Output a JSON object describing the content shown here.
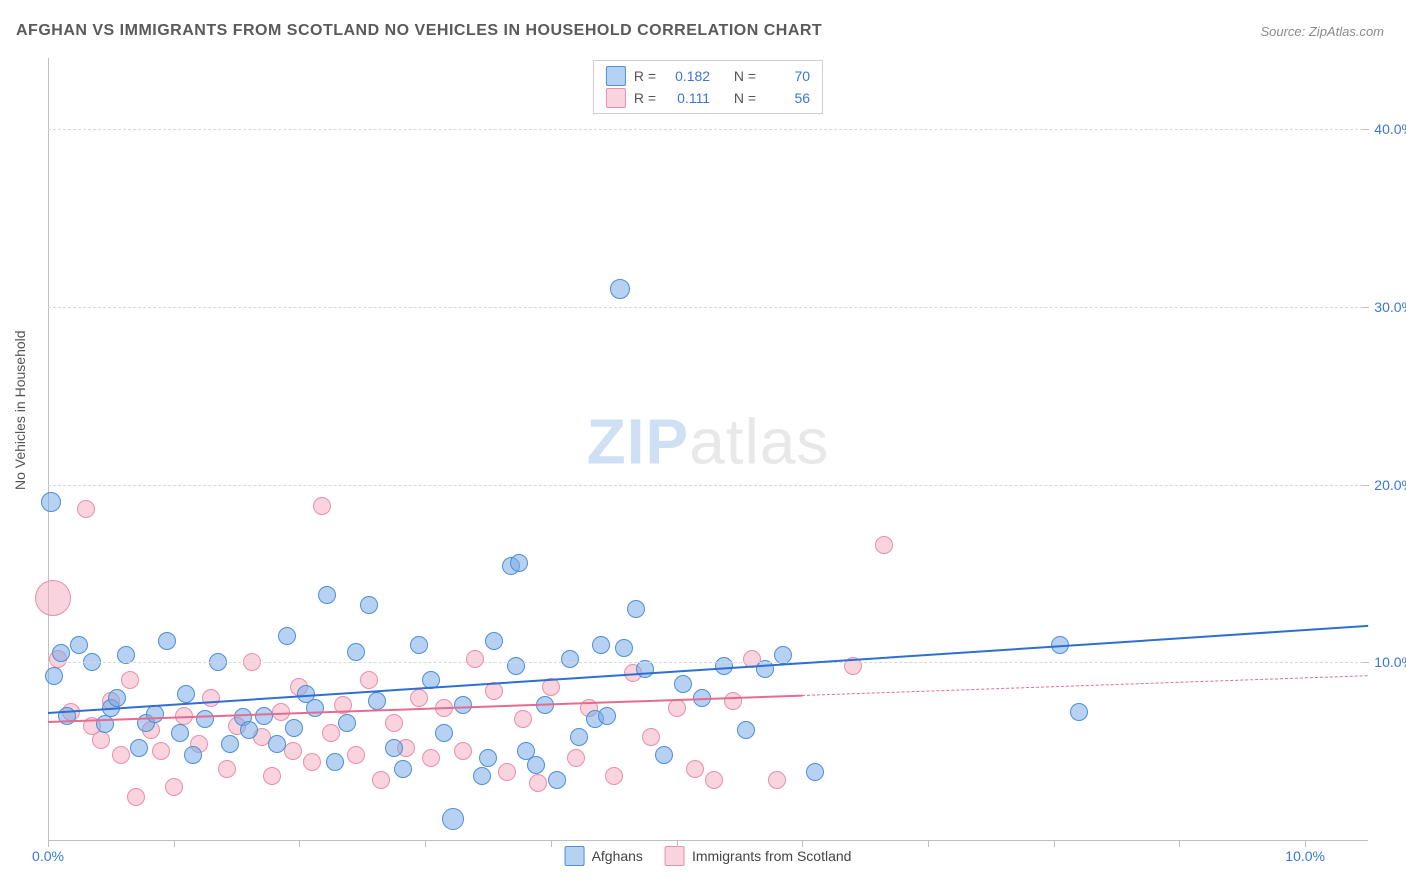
{
  "title": "AFGHAN VS IMMIGRANTS FROM SCOTLAND NO VEHICLES IN HOUSEHOLD CORRELATION CHART",
  "source": "Source: ZipAtlas.com",
  "y_axis_title": "No Vehicles in Household",
  "watermark": {
    "part1": "ZIP",
    "part2": "atlas"
  },
  "colors": {
    "series_a_fill": "rgba(122,172,230,0.55)",
    "series_a_stroke": "#4d8fd8",
    "series_b_fill": "rgba(244,168,190,0.50)",
    "series_b_stroke": "#e98fab",
    "trend_a": "#2e6fd1",
    "trend_b": "#e56c8f",
    "grid": "#d8d8d8",
    "axis": "#bfbfbf",
    "tick_label": "#3b76d6",
    "title_color": "#5a5a5a",
    "background": "#ffffff"
  },
  "chart": {
    "type": "scatter",
    "xlim": [
      0,
      10.5
    ],
    "ylim": [
      0,
      44
    ],
    "y_ticks": [
      10,
      20,
      30,
      40
    ],
    "y_tick_labels": [
      "10.0%",
      "20.0%",
      "30.0%",
      "40.0%"
    ],
    "x_ticks": [
      0,
      1,
      2,
      3,
      4,
      5,
      6,
      7,
      8,
      9,
      10
    ],
    "x_tick_labels": {
      "0": "0.0%",
      "10": "10.0%"
    },
    "marker_default_r": 9,
    "series": [
      {
        "key": "a",
        "name": "Afghans",
        "points": [
          {
            "x": 0.02,
            "y": 19.0,
            "r": 10
          },
          {
            "x": 0.05,
            "y": 9.2
          },
          {
            "x": 0.1,
            "y": 10.5
          },
          {
            "x": 0.15,
            "y": 7.0
          },
          {
            "x": 0.25,
            "y": 11.0
          },
          {
            "x": 0.35,
            "y": 10.0
          },
          {
            "x": 0.45,
            "y": 6.5
          },
          {
            "x": 0.5,
            "y": 7.4
          },
          {
            "x": 0.55,
            "y": 8.0
          },
          {
            "x": 0.62,
            "y": 10.4
          },
          {
            "x": 0.72,
            "y": 5.2
          },
          {
            "x": 0.78,
            "y": 6.6
          },
          {
            "x": 0.85,
            "y": 7.1
          },
          {
            "x": 0.95,
            "y": 11.2
          },
          {
            "x": 1.05,
            "y": 6.0
          },
          {
            "x": 1.1,
            "y": 8.2
          },
          {
            "x": 1.15,
            "y": 4.8
          },
          {
            "x": 1.25,
            "y": 6.8
          },
          {
            "x": 1.35,
            "y": 10.0
          },
          {
            "x": 1.45,
            "y": 5.4
          },
          {
            "x": 1.55,
            "y": 6.9
          },
          {
            "x": 1.6,
            "y": 6.2
          },
          {
            "x": 1.72,
            "y": 7.0
          },
          {
            "x": 1.82,
            "y": 5.4
          },
          {
            "x": 1.9,
            "y": 11.5
          },
          {
            "x": 1.96,
            "y": 6.3
          },
          {
            "x": 2.05,
            "y": 8.2
          },
          {
            "x": 2.12,
            "y": 7.4
          },
          {
            "x": 2.22,
            "y": 13.8
          },
          {
            "x": 2.28,
            "y": 4.4
          },
          {
            "x": 2.38,
            "y": 6.6
          },
          {
            "x": 2.45,
            "y": 10.6
          },
          {
            "x": 2.55,
            "y": 13.2
          },
          {
            "x": 2.62,
            "y": 7.8
          },
          {
            "x": 2.75,
            "y": 5.2
          },
          {
            "x": 2.82,
            "y": 4.0
          },
          {
            "x": 2.95,
            "y": 11.0
          },
          {
            "x": 3.05,
            "y": 9.0
          },
          {
            "x": 3.15,
            "y": 6.0
          },
          {
            "x": 3.22,
            "y": 1.2,
            "r": 11
          },
          {
            "x": 3.3,
            "y": 7.6
          },
          {
            "x": 3.45,
            "y": 3.6
          },
          {
            "x": 3.5,
            "y": 4.6
          },
          {
            "x": 3.55,
            "y": 11.2
          },
          {
            "x": 3.68,
            "y": 15.4
          },
          {
            "x": 3.72,
            "y": 9.8
          },
          {
            "x": 3.75,
            "y": 15.6
          },
          {
            "x": 3.8,
            "y": 5.0
          },
          {
            "x": 3.88,
            "y": 4.2
          },
          {
            "x": 3.95,
            "y": 7.6
          },
          {
            "x": 4.05,
            "y": 3.4
          },
          {
            "x": 4.15,
            "y": 10.2
          },
          {
            "x": 4.22,
            "y": 5.8
          },
          {
            "x": 4.35,
            "y": 6.8
          },
          {
            "x": 4.55,
            "y": 31.0,
            "r": 10
          },
          {
            "x": 4.4,
            "y": 11.0
          },
          {
            "x": 4.45,
            "y": 7.0
          },
          {
            "x": 4.58,
            "y": 10.8
          },
          {
            "x": 4.68,
            "y": 13.0
          },
          {
            "x": 4.75,
            "y": 9.6
          },
          {
            "x": 4.9,
            "y": 4.8
          },
          {
            "x": 5.05,
            "y": 8.8
          },
          {
            "x": 5.2,
            "y": 8.0
          },
          {
            "x": 5.38,
            "y": 9.8
          },
          {
            "x": 5.55,
            "y": 6.2
          },
          {
            "x": 5.7,
            "y": 9.6
          },
          {
            "x": 5.85,
            "y": 10.4
          },
          {
            "x": 6.1,
            "y": 3.8
          },
          {
            "x": 8.05,
            "y": 11.0
          },
          {
            "x": 8.2,
            "y": 7.2
          }
        ],
        "trend": {
          "x1": 0,
          "y1": 7.2,
          "x2": 10.5,
          "y2": 12.1,
          "width": 2.4,
          "dash_from_x": null
        }
      },
      {
        "key": "b",
        "name": "Immigrants from Scotland",
        "points": [
          {
            "x": 0.04,
            "y": 13.6,
            "r": 18
          },
          {
            "x": 0.08,
            "y": 10.2
          },
          {
            "x": 0.18,
            "y": 7.2
          },
          {
            "x": 0.3,
            "y": 18.6
          },
          {
            "x": 0.35,
            "y": 6.4
          },
          {
            "x": 0.42,
            "y": 5.6
          },
          {
            "x": 0.5,
            "y": 7.8
          },
          {
            "x": 0.58,
            "y": 4.8
          },
          {
            "x": 0.65,
            "y": 9.0
          },
          {
            "x": 0.7,
            "y": 2.4
          },
          {
            "x": 0.82,
            "y": 6.2
          },
          {
            "x": 0.9,
            "y": 5.0
          },
          {
            "x": 1.0,
            "y": 3.0
          },
          {
            "x": 1.08,
            "y": 7.0
          },
          {
            "x": 1.2,
            "y": 5.4
          },
          {
            "x": 1.3,
            "y": 8.0
          },
          {
            "x": 1.42,
            "y": 4.0
          },
          {
            "x": 1.5,
            "y": 6.4
          },
          {
            "x": 1.62,
            "y": 10.0
          },
          {
            "x": 1.7,
            "y": 5.8
          },
          {
            "x": 1.78,
            "y": 3.6
          },
          {
            "x": 1.85,
            "y": 7.2
          },
          {
            "x": 1.95,
            "y": 5.0
          },
          {
            "x": 2.0,
            "y": 8.6
          },
          {
            "x": 2.1,
            "y": 4.4
          },
          {
            "x": 2.18,
            "y": 18.8
          },
          {
            "x": 2.25,
            "y": 6.0
          },
          {
            "x": 2.35,
            "y": 7.6
          },
          {
            "x": 2.45,
            "y": 4.8
          },
          {
            "x": 2.55,
            "y": 9.0
          },
          {
            "x": 2.65,
            "y": 3.4
          },
          {
            "x": 2.75,
            "y": 6.6
          },
          {
            "x": 2.85,
            "y": 5.2
          },
          {
            "x": 2.95,
            "y": 8.0
          },
          {
            "x": 3.05,
            "y": 4.6
          },
          {
            "x": 3.15,
            "y": 7.4
          },
          {
            "x": 3.3,
            "y": 5.0
          },
          {
            "x": 3.4,
            "y": 10.2
          },
          {
            "x": 3.55,
            "y": 8.4
          },
          {
            "x": 3.65,
            "y": 3.8
          },
          {
            "x": 3.78,
            "y": 6.8
          },
          {
            "x": 3.9,
            "y": 3.2
          },
          {
            "x": 4.0,
            "y": 8.6
          },
          {
            "x": 4.2,
            "y": 4.6
          },
          {
            "x": 4.3,
            "y": 7.4
          },
          {
            "x": 4.5,
            "y": 3.6
          },
          {
            "x": 4.65,
            "y": 9.4
          },
          {
            "x": 4.8,
            "y": 5.8
          },
          {
            "x": 5.0,
            "y": 7.4
          },
          {
            "x": 5.15,
            "y": 4.0
          },
          {
            "x": 5.3,
            "y": 3.4
          },
          {
            "x": 5.45,
            "y": 7.8
          },
          {
            "x": 5.6,
            "y": 10.2
          },
          {
            "x": 5.8,
            "y": 3.4
          },
          {
            "x": 6.4,
            "y": 9.8
          },
          {
            "x": 6.65,
            "y": 16.6
          }
        ],
        "trend": {
          "x1": 0,
          "y1": 6.7,
          "x2": 10.5,
          "y2": 9.3,
          "width": 2.0,
          "dash_from_x": 6.0
        }
      }
    ]
  },
  "legend_top": [
    {
      "series": "a",
      "r_label": "R =",
      "r_value": "0.182",
      "n_label": "N =",
      "n_value": "70"
    },
    {
      "series": "b",
      "r_label": "R =",
      "r_value": "0.111",
      "n_label": "N =",
      "n_value": "56"
    }
  ],
  "legend_bottom": [
    {
      "series": "a",
      "label": "Afghans"
    },
    {
      "series": "b",
      "label": "Immigrants from Scotland"
    }
  ]
}
